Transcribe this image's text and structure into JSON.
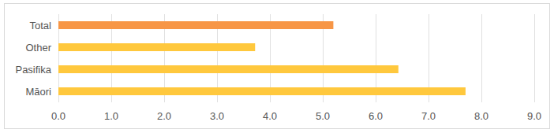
{
  "chart_data": {
    "type": "bar",
    "orientation": "horizontal",
    "categories": [
      "Total",
      "Other",
      "Pasifika",
      "Māori"
    ],
    "values": [
      5.2,
      3.72,
      6.43,
      7.7
    ],
    "colors": [
      "#f79646",
      "#ffc83d",
      "#ffc83d",
      "#ffc83d"
    ],
    "xlim": [
      0,
      9
    ],
    "xticks": [
      {
        "value": 0,
        "label": "0.0"
      },
      {
        "value": 1,
        "label": "1.0"
      },
      {
        "value": 2,
        "label": "2.0"
      },
      {
        "value": 3,
        "label": "3.0"
      },
      {
        "value": 4,
        "label": "4.0"
      },
      {
        "value": 5,
        "label": "5.0"
      },
      {
        "value": 6,
        "label": "6.0"
      },
      {
        "value": 7,
        "label": "7.0"
      },
      {
        "value": 8,
        "label": "8.0"
      },
      {
        "value": 9,
        "label": "9.0"
      }
    ],
    "grid": true
  }
}
